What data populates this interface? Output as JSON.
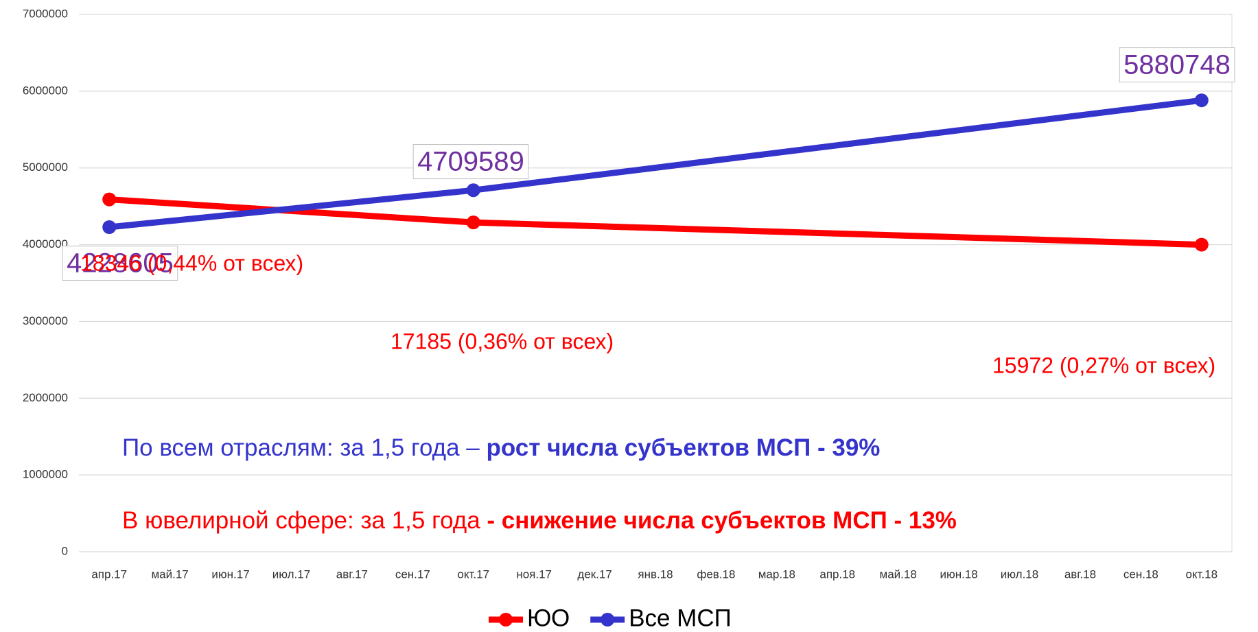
{
  "chart_data": {
    "type": "line",
    "categories": [
      "апр.17",
      "май.17",
      "июн.17",
      "июл.17",
      "авг.17",
      "сен.17",
      "окт.17",
      "ноя.17",
      "дек.17",
      "янв.18",
      "фев.18",
      "мар.18",
      "апр.18",
      "май.18",
      "июн.18",
      "июл.18",
      "авг.18",
      "сен.18",
      "окт.18"
    ],
    "series": [
      {
        "name": "ЮО",
        "color": "#ff0000",
        "x": [
          "апр.17",
          "окт.17",
          "окт.18"
        ],
        "values": [
          4590000,
          4290000,
          4000000
        ]
      },
      {
        "name": "Все МСП",
        "color": "#3434cc",
        "x": [
          "апр.17",
          "окт.17",
          "окт.18"
        ],
        "values": [
          4228605,
          4709589,
          5880748
        ]
      }
    ],
    "annotations": [
      "18346 (0,44% от всех)",
      "17185 (0,36% от всех)",
      "15972 (0,27% от всех)"
    ],
    "summary": [
      {
        "text": "По всем отраслям: за 1,5 года – ",
        "bold": "рост числа субъектов МСП - 39%",
        "color": "#3434cc"
      },
      {
        "text": "В ювелирной сфере: за 1,5 года ",
        "bold": "- снижение числа субъектов МСП - 13%",
        "color": "#ff0000"
      }
    ],
    "ylim": [
      0,
      7000000
    ],
    "yticks": [
      0,
      1000000,
      2000000,
      3000000,
      4000000,
      5000000,
      6000000,
      7000000
    ],
    "grid": true,
    "legend": "bottom"
  }
}
